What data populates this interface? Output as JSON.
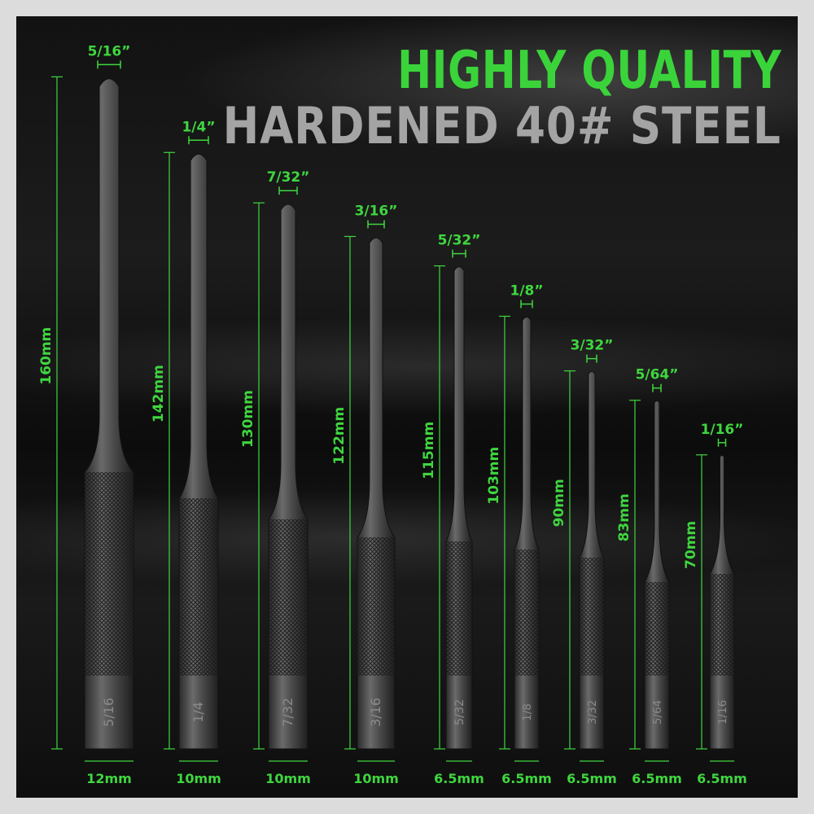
{
  "headline": {
    "line1": "HIGHLY QUALITY",
    "line2": "HARDENED 40# STEEL"
  },
  "colors": {
    "accent_green": "#3ad43a",
    "headline_gray": "#a4a4a4",
    "background": "#121212",
    "frame": "#dcdcdc"
  },
  "punches": [
    {
      "tip_size": "5/16”",
      "length": "160mm",
      "length_mm": 160,
      "handle": "12mm",
      "stamp": "5/16"
    },
    {
      "tip_size": "1/4”",
      "length": "142mm",
      "length_mm": 142,
      "handle": "10mm",
      "stamp": "1/4"
    },
    {
      "tip_size": "7/32”",
      "length": "130mm",
      "length_mm": 130,
      "handle": "10mm",
      "stamp": "7/32"
    },
    {
      "tip_size": "3/16”",
      "length": "122mm",
      "length_mm": 122,
      "handle": "10mm",
      "stamp": "3/16"
    },
    {
      "tip_size": "5/32”",
      "length": "115mm",
      "length_mm": 115,
      "handle": "6.5mm",
      "stamp": "5/32"
    },
    {
      "tip_size": "1/8”",
      "length": "103mm",
      "length_mm": 103,
      "handle": "6.5mm",
      "stamp": "1/8"
    },
    {
      "tip_size": "3/32”",
      "length": "90mm",
      "length_mm": 90,
      "handle": "6.5mm",
      "stamp": "3/32"
    },
    {
      "tip_size": "5/64”",
      "length": "83mm",
      "length_mm": 83,
      "handle": "6.5mm",
      "stamp": "5/64"
    },
    {
      "tip_size": "1/16”",
      "length": "70mm",
      "length_mm": 70,
      "handle": "6.5mm",
      "stamp": "1/16"
    }
  ]
}
